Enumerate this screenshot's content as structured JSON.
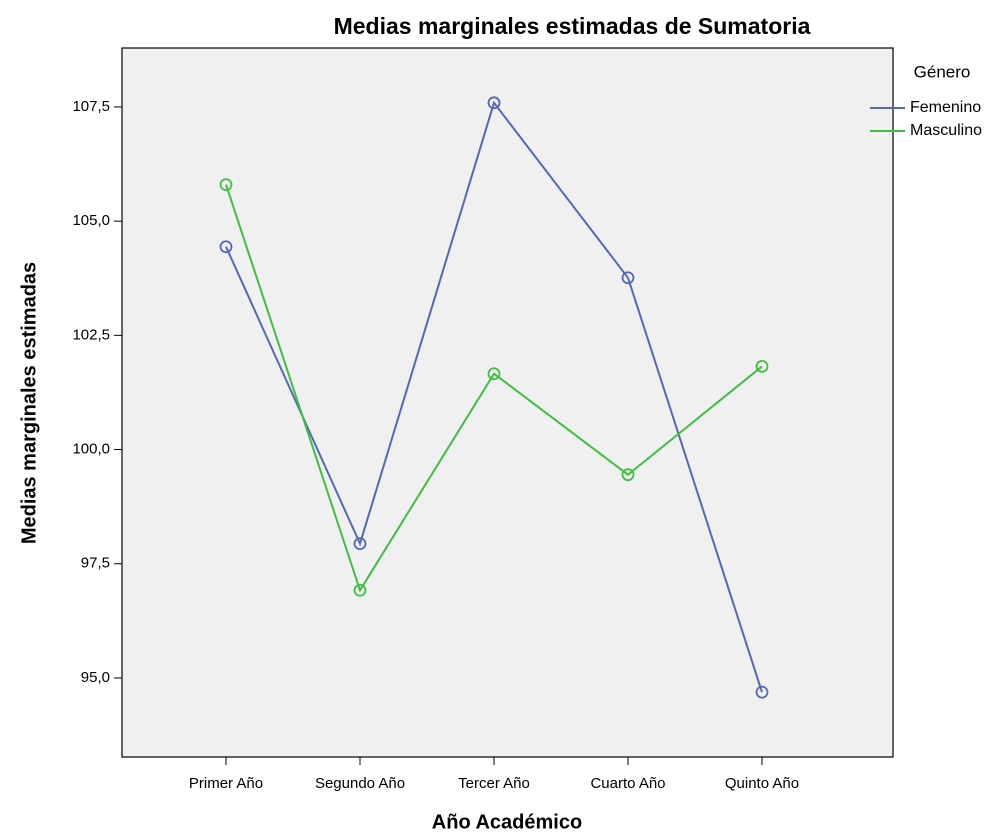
{
  "chart_data": {
    "type": "line",
    "title": "Medias marginales estimadas de Sumatoria",
    "x_label": "Año Académico",
    "y_label": "Medias marginales estimadas",
    "legend_title": "Género",
    "legend": "right",
    "categories": [
      "Primer Año",
      "Segundo Año",
      "Tercer Año",
      "Cuarto Año",
      "Quinto Año"
    ],
    "series": [
      {
        "name": "Femenino",
        "color": "#5468b4",
        "values": [
          104.44,
          97.94,
          107.59,
          103.76,
          94.69
        ]
      },
      {
        "name": "Masculino",
        "color": "#3fbf3f",
        "values": [
          105.8,
          96.92,
          101.66,
          99.45,
          101.82
        ]
      }
    ],
    "ylim": [
      93.27,
      108.79
    ],
    "yticks": [
      {
        "value": 95,
        "label": "95,0"
      },
      {
        "value": 97.5,
        "label": "97,5"
      },
      {
        "value": 100,
        "label": "100,0"
      },
      {
        "value": 102.5,
        "label": "102,5"
      },
      {
        "value": 105,
        "label": "105,0"
      },
      {
        "value": 107.5,
        "label": "107,5"
      }
    ],
    "grid": false
  }
}
